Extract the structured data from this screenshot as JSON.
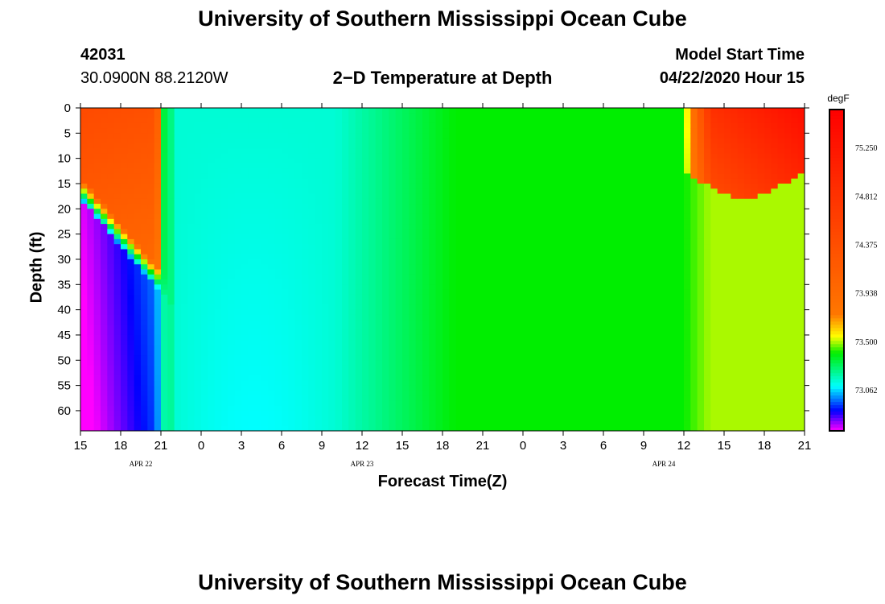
{
  "title": "University of Southern Mississippi Ocean Cube",
  "footer_title": "University of Southern Mississippi Ocean Cube",
  "station_id": "42031",
  "location": "30.0900N 88.2120W",
  "plot_title": "2−D Temperature at Depth",
  "model_start_label": "Model Start Time",
  "model_start_value": "04/22/2020 Hour 15",
  "colors": {
    "magenta": "#ff00ff",
    "blue": "#0000ff",
    "cyan": "#00ffff",
    "green": "#00ee00",
    "yellow": "#ffff00",
    "orange": "#ff7700",
    "red": "#ff0000"
  },
  "chart_data": {
    "type": "heatmap",
    "title": "2−D Temperature at Depth",
    "xlabel": "Forecast Time(Z)",
    "ylabel": "Depth (ft)",
    "x_tick_labels": [
      "15",
      "18",
      "21",
      "0",
      "3",
      "6",
      "9",
      "12",
      "15",
      "18",
      "21",
      "0",
      "3",
      "6",
      "9",
      "12",
      "15",
      "18",
      "21"
    ],
    "x_hours": [
      0,
      3,
      6,
      9,
      12,
      15,
      18,
      21,
      24,
      27,
      30,
      33,
      36,
      39,
      42,
      45,
      48,
      51,
      54
    ],
    "date_labels": [
      {
        "text": "APR  22",
        "hour": 4.5
      },
      {
        "text": "APR  23",
        "hour": 21
      },
      {
        "text": "APR  24",
        "hour": 43.5
      }
    ],
    "y_tick_labels": [
      "0",
      "5",
      "10",
      "15",
      "20",
      "25",
      "30",
      "35",
      "40",
      "45",
      "50",
      "55",
      "60"
    ],
    "y_ticks": [
      0,
      5,
      10,
      15,
      20,
      25,
      30,
      35,
      40,
      45,
      50,
      55,
      60
    ],
    "ylim": [
      0,
      64
    ],
    "xlim": [
      0,
      54
    ],
    "colorbar": {
      "unit": "degF",
      "tick_labels": [
        "75.250",
        "74.812",
        "74.375",
        "73.938",
        "73.500",
        "73.062"
      ],
      "tick_values": [
        75.25,
        74.812,
        74.375,
        73.938,
        73.5,
        73.062
      ],
      "range": [
        72.7,
        75.6
      ]
    },
    "field_description_points": [
      {
        "hour": 0,
        "depth": 5,
        "temp": 74.4
      },
      {
        "hour": 0,
        "depth": 50,
        "temp": 72.8
      },
      {
        "hour": 6,
        "depth": 10,
        "temp": 74.5
      },
      {
        "hour": 6,
        "depth": 45,
        "temp": 72.95
      },
      {
        "hour": 12,
        "depth": 30,
        "temp": 73.25
      },
      {
        "hour": 24,
        "depth": 30,
        "temp": 73.15
      },
      {
        "hour": 36,
        "depth": 30,
        "temp": 73.4
      },
      {
        "hour": 48,
        "depth": 5,
        "temp": 74.9
      },
      {
        "hour": 54,
        "depth": 5,
        "temp": 75.4
      }
    ]
  }
}
